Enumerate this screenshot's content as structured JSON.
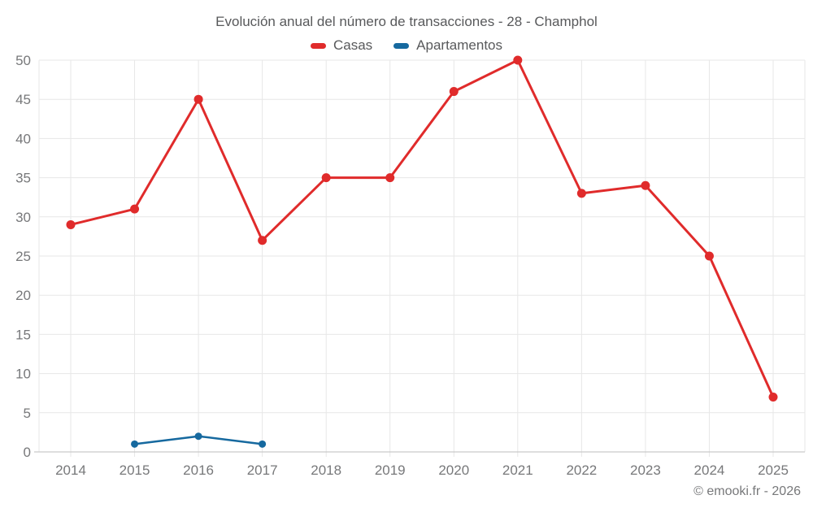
{
  "title": "Evolución anual del número de transacciones - 28 - Champhol",
  "footer": "© emooki.fr - 2026",
  "chart_data": {
    "type": "line",
    "title": "Evolución anual del número de transacciones - 28 - Champhol",
    "categories": [
      "2014",
      "2015",
      "2016",
      "2017",
      "2018",
      "2019",
      "2020",
      "2021",
      "2022",
      "2023",
      "2024",
      "2025"
    ],
    "series": [
      {
        "name": "Casas",
        "color": "#e02b2b",
        "values": [
          29,
          31,
          45,
          27,
          35,
          35,
          46,
          50,
          33,
          34,
          25,
          7
        ]
      },
      {
        "name": "Apartamentos",
        "color": "#16699f",
        "values": [
          null,
          1,
          2,
          1,
          null,
          null,
          null,
          null,
          null,
          null,
          null,
          null
        ]
      }
    ],
    "ylim": [
      0,
      50
    ],
    "yticks": [
      0,
      5,
      10,
      15,
      20,
      25,
      30,
      35,
      40,
      45,
      50
    ],
    "grid": true,
    "legend_position": "top",
    "colors": {
      "grid": "#e7e7e7",
      "axis": "#c9c9c9",
      "tick_text": "#77787a",
      "title_text": "#58595b"
    }
  }
}
